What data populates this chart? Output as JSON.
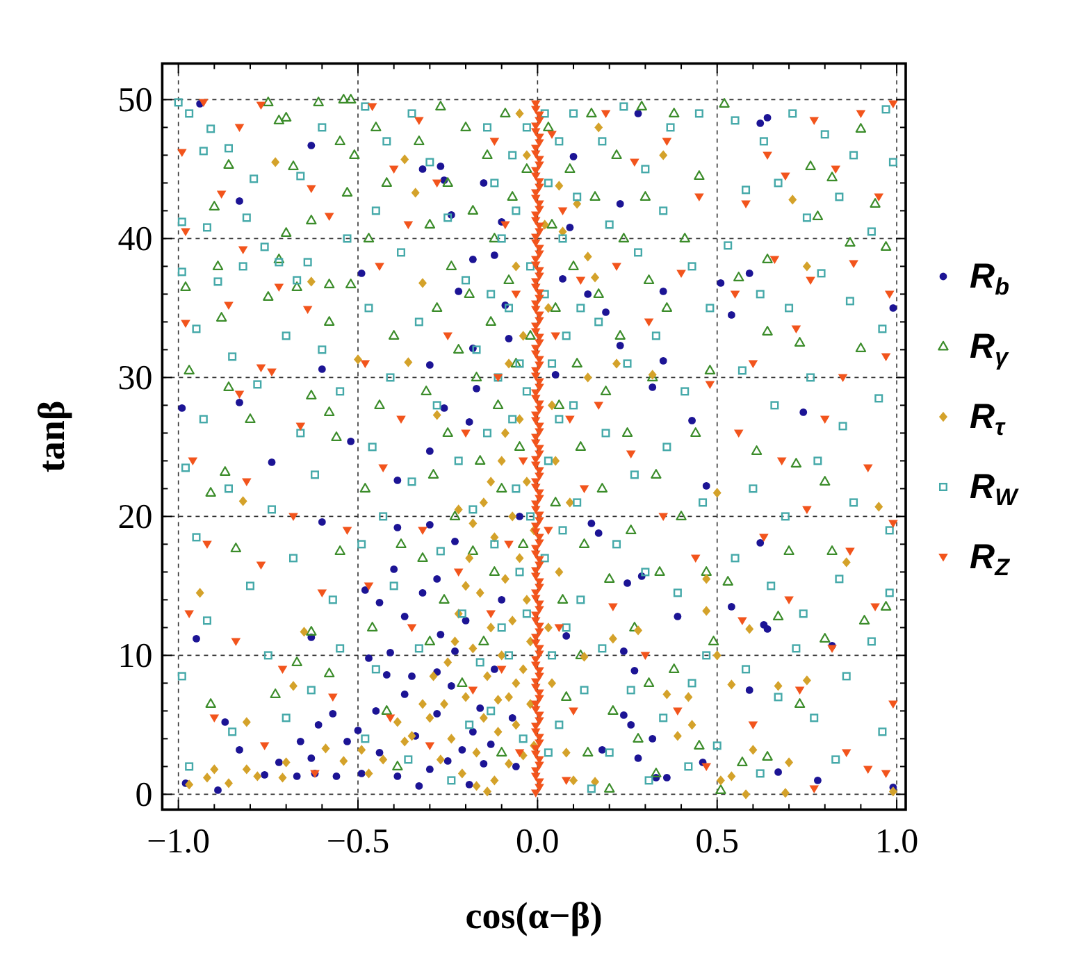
{
  "chart_data": {
    "type": "scatter",
    "xlabel": "cos(α−β)",
    "ylabel": "tanβ",
    "xlim": [
      -1.045,
      1.025
    ],
    "ylim": [
      -1.1,
      52.6
    ],
    "xticks": [
      {
        "value": -1,
        "label": "−1.0"
      },
      {
        "value": -0.9,
        "label": null
      },
      {
        "value": -0.8,
        "label": null
      },
      {
        "value": -0.7,
        "label": null
      },
      {
        "value": -0.6,
        "label": null
      },
      {
        "value": -0.5,
        "label": "−0.5"
      },
      {
        "value": -0.4,
        "label": null
      },
      {
        "value": -0.3,
        "label": null
      },
      {
        "value": -0.2,
        "label": null
      },
      {
        "value": -0.1,
        "label": null
      },
      {
        "value": 0,
        "label": "0.0"
      },
      {
        "value": 0.1,
        "label": null
      },
      {
        "value": 0.2,
        "label": null
      },
      {
        "value": 0.3,
        "label": null
      },
      {
        "value": 0.4,
        "label": null
      },
      {
        "value": 0.5,
        "label": "0.5"
      },
      {
        "value": 0.6,
        "label": null
      },
      {
        "value": 0.7,
        "label": null
      },
      {
        "value": 0.8,
        "label": null
      },
      {
        "value": 0.9,
        "label": null
      },
      {
        "value": 1,
        "label": "1.0"
      }
    ],
    "yticks": [
      0,
      {
        "value": 2,
        "label": null
      },
      {
        "value": 4,
        "label": null
      },
      {
        "value": 6,
        "label": null
      },
      {
        "value": 8,
        "label": null
      },
      10,
      {
        "value": 12,
        "label": null
      },
      {
        "value": 14,
        "label": null
      },
      {
        "value": 16,
        "label": null
      },
      {
        "value": 18,
        "label": null
      },
      20,
      {
        "value": 22,
        "label": null
      },
      {
        "value": 24,
        "label": null
      },
      {
        "value": 26,
        "label": null
      },
      {
        "value": 28,
        "label": null
      },
      30,
      {
        "value": 32,
        "label": null
      },
      {
        "value": 34,
        "label": null
      },
      {
        "value": 36,
        "label": null
      },
      {
        "value": 38,
        "label": null
      },
      40,
      {
        "value": 42,
        "label": null
      },
      {
        "value": 44,
        "label": null
      },
      {
        "value": 46,
        "label": null
      },
      {
        "value": 48,
        "label": null
      },
      50
    ],
    "grid": true,
    "legend": "right",
    "series": [
      {
        "name": "R$_{b}$",
        "color": "#1c1495",
        "marker": "circle",
        "x": [
          -0.94,
          -0.63,
          -0.83,
          -0.49,
          -0.6,
          -0.83,
          -0.99,
          -0.52,
          -0.32,
          -0.27,
          -0.26,
          -0.15,
          -0.24,
          -0.18,
          -0.1,
          -0.12,
          -0.09,
          -0.08,
          -0.18,
          -0.3,
          -0.17,
          -0.26,
          -0.19,
          -0.22,
          0.28,
          0.1,
          0.09,
          0.23,
          0.07,
          0.14,
          0.19,
          0.35,
          0.23,
          0.35,
          0.32,
          0.05,
          0.43,
          0.62,
          0.64,
          0.51,
          0.59,
          0.54,
          0.74,
          0.99,
          0.62,
          0.63,
          0.64,
          0.82,
          0.54,
          0.59,
          0.67,
          0.78,
          0.99,
          0.47,
          0.15,
          0.17,
          0.25,
          0.29,
          0.39,
          0.24,
          0.27,
          0.24,
          0.26,
          0.18,
          0.32,
          0.46,
          0.08,
          0.33,
          0.36,
          0.28,
          -0.74,
          -0.3,
          -0.39,
          -0.6,
          -0.39,
          -0.3,
          -0.4,
          -0.28,
          -0.23,
          -0.44,
          -0.48,
          -0.37,
          -0.32,
          -0.95,
          -0.63,
          -0.41,
          -0.87,
          -0.83,
          -0.72,
          -0.63,
          -0.57,
          -0.61,
          -0.53,
          -0.44,
          -0.37,
          -0.35,
          -0.28,
          -0.24,
          -0.18,
          -0.21,
          -0.3,
          -0.39,
          -0.49,
          -0.56,
          -0.62,
          -0.67,
          -0.76,
          -0.89,
          -0.98,
          -0.19,
          -0.15,
          -0.16,
          -0.28,
          -0.27,
          -0.23,
          -0.07,
          -0.12,
          -0.1,
          -0.05,
          -0.06,
          -0.45,
          -0.5,
          -0.2,
          -0.34,
          -0.42,
          -0.25,
          -0.13,
          -0.66,
          -0.33,
          -0.47
        ],
        "values": [
          49.7,
          46.7,
          42.7,
          37.5,
          30.6,
          28.2,
          27.8,
          25.4,
          45,
          45.2,
          44.2,
          44,
          41.7,
          38.5,
          41.2,
          38.8,
          35.2,
          32.8,
          32.1,
          30.9,
          29.2,
          27.8,
          26.8,
          36.2,
          49,
          45.9,
          40.8,
          42.5,
          37.1,
          36,
          34.7,
          36.2,
          32.3,
          31.2,
          29.3,
          30.2,
          26.9,
          48.3,
          48.7,
          36.8,
          37.5,
          34.5,
          27.5,
          35,
          18.1,
          12.2,
          11.9,
          10.7,
          13.5,
          7.5,
          1.6,
          1,
          0.5,
          22.2,
          19.5,
          18.8,
          15.2,
          15.7,
          12.8,
          10.3,
          8.9,
          5.7,
          5,
          3.2,
          4,
          2.3,
          11.4,
          1.2,
          1.2,
          2.6,
          23.9,
          24.7,
          22.6,
          19.6,
          19.2,
          19.4,
          16.2,
          15.5,
          18.2,
          13.8,
          14.7,
          12.8,
          14.5,
          11.2,
          11.3,
          10.2,
          5.2,
          3.2,
          2.3,
          2.6,
          5.8,
          5,
          3.8,
          3,
          7.2,
          8.5,
          5.8,
          7.8,
          4.5,
          3.2,
          1.8,
          1.3,
          1.5,
          1.3,
          1.5,
          1.3,
          1.4,
          0.3,
          0.8,
          0.7,
          2.2,
          6.2,
          8.8,
          11.5,
          10.3,
          5.5,
          9,
          14,
          20,
          2,
          6,
          4.6,
          12.5,
          4.2,
          8.6,
          2.4,
          3.6,
          3.8,
          0.6,
          9.8
        ]
      },
      {
        "name": "R$_{γ}$",
        "color": "#3b8c2a",
        "marker": "triangle",
        "x": [
          0.9,
          0.82,
          0.76,
          0.94,
          0.78,
          0.97,
          0.87,
          0.64,
          0.56,
          0.64,
          0.73,
          0.9,
          0.52,
          0.61,
          0.72,
          0.8,
          0.7,
          0.82,
          0.97,
          0.91,
          0.8,
          0.67,
          0.53,
          0.73,
          0.64,
          0.57,
          0.51,
          -0.54,
          -0.52,
          -0.75,
          -0.61,
          -0.7,
          -0.72,
          -0.55,
          -0.51,
          -0.68,
          -0.86,
          -0.9,
          -0.53,
          -0.63,
          -0.7,
          -0.98,
          -0.89,
          -0.75,
          -0.58,
          -0.72,
          -0.67,
          -0.58,
          -0.52,
          -0.88,
          -0.86,
          -0.63,
          -0.58,
          -0.8,
          -0.87,
          -0.91,
          -0.84,
          -0.73,
          -0.91,
          -0.63,
          -0.58,
          -0.56,
          -0.67,
          -0.55,
          -0.97,
          -0.45,
          -0.42,
          -0.47,
          -0.4,
          -0.44,
          -0.48,
          -0.38,
          -0.46,
          -0.42,
          -0.39,
          0.38,
          0.45,
          0.41,
          0.36,
          0.48,
          0.44,
          0.4,
          0.47,
          0.38,
          0.45,
          0.49,
          -0.33,
          -0.3,
          -0.28,
          -0.31,
          -0.29,
          -0.32,
          -0.3,
          -0.27,
          -0.25,
          -0.24,
          -0.22,
          -0.25,
          -0.23,
          -0.26,
          -0.21,
          -0.2,
          -0.18,
          -0.19,
          -0.17,
          -0.16,
          -0.18,
          -0.15,
          -0.14,
          -0.12,
          -0.13,
          -0.11,
          -0.1,
          -0.12,
          -0.09,
          -0.07,
          -0.08,
          -0.06,
          -0.05,
          -0.04,
          -0.03,
          -0.02,
          0.03,
          0.04,
          0.05,
          0.06,
          0.05,
          0.07,
          0.08,
          0.09,
          0.1,
          0.11,
          0.12,
          0.13,
          0.12,
          0.14,
          0.15,
          0.16,
          0.17,
          0.19,
          0.18,
          0.2,
          0.21,
          0.22,
          0.24,
          0.23,
          0.25,
          0.26,
          0.27,
          0.28,
          0.29,
          0.3,
          0.31,
          0.32,
          0.33,
          0.34,
          0.31,
          0.2,
          0.33,
          -0.1
        ],
        "values": [
          47.9,
          44.4,
          45.2,
          42.5,
          41.6,
          39.4,
          39.7,
          38.5,
          37.2,
          33.3,
          32.5,
          32.1,
          49.7,
          24.7,
          23.8,
          22.5,
          17.5,
          17.5,
          13.5,
          12.5,
          11.2,
          12.8,
          15.3,
          6.5,
          2.7,
          2.3,
          0.3,
          50,
          50,
          49.8,
          49.8,
          48.7,
          48.5,
          47,
          46,
          45.2,
          45.3,
          42.3,
          43.3,
          41.3,
          40.4,
          36.5,
          38,
          35.8,
          36.7,
          38.5,
          36.5,
          34,
          36.7,
          34.3,
          29.3,
          28.7,
          27.5,
          27,
          23.2,
          21.7,
          17.7,
          7.2,
          6.5,
          11.7,
          8.7,
          25.7,
          9.5,
          17.5,
          30.5,
          48,
          44,
          40,
          33,
          28,
          22,
          18,
          12,
          6,
          2,
          49,
          44.5,
          40,
          35,
          30.5,
          26,
          20,
          16,
          9,
          3.5,
          11,
          47,
          41,
          35,
          29,
          23,
          17,
          11,
          49.5,
          44,
          38,
          32,
          26,
          20,
          14,
          8,
          48,
          42,
          36,
          30,
          24,
          17.5,
          11,
          46,
          40,
          34,
          28,
          22,
          16,
          49,
          43,
          37,
          31,
          25,
          18,
          45,
          33,
          48,
          41,
          35,
          28,
          21,
          14,
          7,
          45,
          38,
          31,
          25,
          18,
          10,
          3,
          49,
          43,
          36,
          29,
          22,
          15.5,
          6,
          46,
          40,
          33,
          26,
          19,
          12,
          4,
          49.5,
          43,
          37,
          30,
          23,
          16,
          8,
          0.4,
          1.5,
          3
        ]
      },
      {
        "name": "R$_{τ}$",
        "color": "#d4a22a",
        "marker": "diamond",
        "x": [
          -0.73,
          -0.63,
          -0.37,
          -0.32,
          -0.36,
          -0.5,
          -0.28,
          -0.34,
          0.35,
          0.71,
          0.75,
          0.32,
          0.22,
          0.07,
          0.14,
          0.16,
          0.17,
          0.14,
          0.11,
          0.06,
          0.5,
          0.95,
          0.86,
          0.47,
          0.47,
          0.59,
          0.5,
          0.54,
          0.67,
          0.75,
          0.6,
          0.7,
          0.58,
          0.51,
          0.54,
          0.43,
          0.39,
          0.42,
          0.36,
          0.28,
          0.21,
          0.13,
          0.1,
          0.16,
          0.99,
          0.69,
          -0.82,
          -0.94,
          -0.65,
          -0.81,
          -0.68,
          -0.97,
          -0.92,
          -0.9,
          -0.86,
          -0.81,
          -0.78,
          -0.71,
          -0.7,
          -0.59,
          -0.54,
          -0.49,
          -0.47,
          -0.43,
          -0.37,
          -0.39,
          -0.35,
          -0.32,
          -0.3,
          -0.27,
          -0.25,
          -0.24,
          -0.22,
          -0.21,
          -0.2,
          -0.19,
          -0.18,
          -0.17,
          -0.16,
          -0.15,
          -0.15,
          -0.14,
          -0.13,
          -0.12,
          -0.12,
          -0.11,
          -0.1,
          -0.1,
          -0.09,
          -0.08,
          -0.08,
          -0.07,
          -0.07,
          -0.06,
          -0.05,
          -0.05,
          -0.04,
          -0.04,
          -0.03,
          -0.03,
          -0.02,
          -0.02,
          -0.01,
          -0.01,
          -0.26,
          -0.23,
          -0.2,
          -0.18,
          -0.13,
          -0.11,
          -0.09,
          -0.06,
          -0.17,
          -0.29,
          -0.22,
          -0.14,
          -0.04,
          -0.06,
          -0.03,
          0.03,
          0.04,
          -0.08,
          0.02,
          -0.05,
          0.05,
          0.06,
          0.04,
          0.08,
          0.03,
          0.09
        ],
        "values": [
          45.5,
          36.9,
          45.7,
          36.8,
          31.1,
          31.3,
          27.3,
          43.3,
          46,
          42.8,
          38,
          30.2,
          31,
          40.5,
          38.7,
          37.2,
          48,
          30,
          42.5,
          43.8,
          21.7,
          20.7,
          16.7,
          15.5,
          13.2,
          11.9,
          10,
          7.9,
          7.8,
          8.2,
          3.2,
          2.3,
          0,
          1,
          1.3,
          5,
          4.2,
          7,
          7.2,
          11.8,
          11.2,
          9.9,
          1,
          0.9,
          0.2,
          0.1,
          21.1,
          14.5,
          11.7,
          5.2,
          7.8,
          0.7,
          1.2,
          1.8,
          0.8,
          1.8,
          1.3,
          1.2,
          2.3,
          3.3,
          2.4,
          3.2,
          1.5,
          2.5,
          3.8,
          5.2,
          4.2,
          6.5,
          5.5,
          2.5,
          9.5,
          4,
          13,
          1.5,
          7,
          17,
          10.5,
          3,
          14.5,
          5.5,
          21,
          8.5,
          12,
          1,
          18.5,
          4.5,
          10,
          24,
          15.5,
          7,
          2.2,
          20,
          12.5,
          5,
          17,
          27,
          9,
          2.8,
          14,
          22.5,
          6.5,
          11,
          19,
          3.5,
          6.5,
          11,
          15,
          19.5,
          22.5,
          6.8,
          26,
          8,
          0.6,
          8.5,
          20.5,
          0.2,
          33,
          38,
          46,
          35,
          28,
          31,
          41,
          49,
          24,
          16,
          8,
          3,
          12,
          21
        ]
      },
      {
        "name": "R$_{W}$",
        "color": "#45a9a9",
        "marker": "square",
        "x": [
          -1,
          -0.97,
          -0.91,
          -0.93,
          -0.86,
          -0.79,
          -0.81,
          -0.99,
          -0.92,
          -0.76,
          -0.72,
          -0.64,
          -0.67,
          -0.82,
          -0.89,
          -0.99,
          -0.7,
          -0.85,
          -0.95,
          -0.6,
          -0.78,
          -0.93,
          -0.66,
          -0.55,
          -0.98,
          -0.86,
          -0.74,
          -0.62,
          -0.95,
          -0.8,
          -0.68,
          -0.57,
          -0.92,
          -0.75,
          -0.63,
          -0.99,
          -0.85,
          -0.7,
          -0.55,
          -0.97,
          -0.6,
          -0.66,
          -0.53,
          -0.48,
          -0.42,
          -0.35,
          -0.3,
          -0.45,
          -0.38,
          -0.25,
          -0.47,
          -0.33,
          -0.2,
          -0.41,
          -0.28,
          -0.17,
          -0.46,
          -0.35,
          -0.22,
          -0.49,
          -0.4,
          -0.27,
          -0.18,
          -0.45,
          -0.33,
          -0.21,
          -0.48,
          -0.36,
          -0.24,
          -0.16,
          -0.19,
          -0.43,
          -0.14,
          -0.12,
          -0.1,
          -0.13,
          -0.11,
          -0.14,
          -0.12,
          -0.1,
          -0.13,
          -0.07,
          -0.06,
          -0.08,
          -0.05,
          -0.07,
          -0.06,
          -0.05,
          -0.08,
          -0.04,
          -0.03,
          -0.02,
          -0.03,
          -0.02,
          -0.03,
          0.02,
          0.03,
          0.02,
          0.04,
          0.03,
          0.02,
          0.04,
          0.03,
          0.06,
          0.07,
          0.08,
          0.06,
          0.07,
          0.08,
          0.06,
          0.1,
          0.11,
          0.12,
          0.1,
          0.11,
          0.12,
          0.13,
          0.15,
          0.18,
          0.24,
          0.3,
          0.37,
          0.45,
          0.2,
          0.28,
          0.35,
          0.43,
          0.17,
          0.25,
          0.33,
          0.41,
          0.48,
          0.19,
          0.27,
          0.36,
          0.46,
          0.22,
          0.3,
          0.39,
          0.47,
          0.18,
          0.26,
          0.35,
          0.43,
          0.2,
          0.31,
          0.42,
          0.5,
          0.55,
          0.63,
          0.71,
          0.8,
          0.88,
          0.97,
          0.99,
          0.58,
          0.67,
          0.75,
          0.84,
          0.93,
          0.53,
          0.62,
          0.7,
          0.79,
          0.87,
          0.96,
          0.57,
          0.66,
          0.76,
          0.85,
          0.95,
          0.6,
          0.69,
          0.78,
          0.88,
          0.98,
          0.55,
          0.65,
          0.74,
          0.84,
          0.93,
          0.58,
          0.67,
          0.77,
          0.86,
          0.96,
          0.62,
          0.83,
          0.98,
          0.72
        ],
        "values": [
          49.8,
          49,
          47.9,
          46.3,
          46.5,
          44.3,
          41.5,
          41.2,
          40.8,
          39.4,
          38.3,
          38.3,
          37,
          38,
          36.9,
          37.6,
          33,
          31.5,
          33.5,
          32,
          29.5,
          27,
          26,
          29,
          23.5,
          22,
          20.5,
          23,
          18.5,
          15,
          17,
          14,
          12.5,
          10,
          7.5,
          8.5,
          4.5,
          5.5,
          10.5,
          2,
          48,
          44.5,
          40,
          49.5,
          47,
          49,
          45.5,
          42,
          39,
          41.5,
          35,
          34,
          37,
          30,
          28,
          32,
          25,
          22.5,
          24,
          18,
          15,
          17.5,
          20.5,
          9,
          10.5,
          13,
          4,
          2.5,
          1,
          9.5,
          5,
          20,
          48,
          44,
          40,
          36,
          30,
          26,
          18,
          12,
          6,
          46,
          42,
          35,
          31,
          27,
          22,
          16,
          10,
          4,
          48,
          38,
          29,
          20,
          13,
          49,
          44,
          36,
          31,
          24,
          17,
          10,
          3,
          47,
          40,
          33,
          27,
          19,
          12,
          5,
          49,
          43,
          35,
          28,
          21,
          14,
          7.5,
          0.4,
          47,
          49.5,
          45,
          48,
          49,
          41,
          39,
          42,
          38,
          34,
          31,
          33,
          29,
          35,
          26,
          23,
          25,
          21,
          18,
          16,
          14.5,
          10,
          10.5,
          7.5,
          5.5,
          8,
          3,
          1,
          2,
          3.5,
          48.5,
          47,
          49,
          47.5,
          46,
          49.3,
          45.5,
          43.5,
          44,
          41.5,
          43,
          40.5,
          39.5,
          36,
          35,
          37.5,
          35.5,
          33.5,
          30.5,
          28,
          30,
          26.5,
          28.5,
          22,
          20,
          24,
          21,
          19,
          17,
          15,
          13,
          15.5,
          11,
          9,
          7,
          5.5,
          8.5,
          4.5,
          1.5,
          2.5,
          14.5,
          10.5
        ]
      },
      {
        "name": "R$_{Z}$",
        "color": "#f2541c",
        "marker": "triangle",
        "x": [
          -0.005,
          0.005,
          -0.005,
          0.005,
          -0.005,
          0.005,
          -0.005,
          0.005,
          -0.005,
          0.005,
          -0.005,
          0.005,
          -0.005,
          0.005,
          -0.005,
          0.005,
          -0.005,
          0.005,
          -0.005,
          0.005,
          -0.005,
          0.005,
          -0.005,
          0.005,
          -0.005,
          0.005,
          -0.005,
          0.005,
          -0.005,
          0.005,
          -0.005,
          0.005,
          -0.005,
          0.005,
          -0.005,
          0.005,
          -0.005,
          0.005,
          -0.005,
          0.005,
          -0.005,
          0.005,
          -0.005,
          0.005,
          -0.005,
          0.005,
          -0.005,
          0.005,
          -0.005,
          0.005,
          -0.005,
          0.005,
          -0.005,
          0.005,
          -0.005,
          0.005,
          -0.005,
          0.005,
          -0.005,
          0.005,
          -0.005,
          0.005,
          -0.005,
          -0.93,
          -0.77,
          -0.83,
          -0.99,
          -0.88,
          -0.63,
          -0.58,
          -0.98,
          -0.82,
          -0.72,
          -0.86,
          -0.64,
          -0.98,
          -0.77,
          -0.83,
          -0.66,
          -0.96,
          -0.81,
          -0.68,
          -0.92,
          -0.77,
          -0.6,
          -0.97,
          -0.84,
          -0.71,
          -0.57,
          -0.9,
          -0.76,
          -0.62,
          -0.53,
          -0.46,
          -0.4,
          -0.33,
          -0.44,
          -0.36,
          -0.28,
          -0.48,
          -0.38,
          -0.25,
          -0.43,
          -0.32,
          -0.2,
          -0.47,
          -0.35,
          -0.22,
          -0.41,
          -0.3,
          -0.18,
          -0.12,
          -0.09,
          -0.06,
          -0.11,
          -0.04,
          -0.08,
          -0.1,
          -0.05,
          0.04,
          0.07,
          0.05,
          0.09,
          0.03,
          0.06,
          0.1,
          0.12,
          0.13,
          -0.13,
          0.08,
          0.19,
          0.27,
          0.36,
          0.45,
          0.22,
          0.31,
          0.4,
          0.48,
          0.17,
          0.26,
          0.35,
          0.44,
          0.21,
          0.3,
          0.39,
          0.47,
          0.99,
          0.9,
          0.77,
          0.64,
          0.58,
          0.69,
          0.83,
          0.95,
          0.55,
          0.66,
          0.76,
          0.88,
          0.98,
          0.6,
          0.72,
          0.85,
          0.97,
          0.56,
          0.68,
          0.8,
          0.92,
          0.63,
          0.75,
          0.87,
          0.99,
          0.57,
          0.7,
          0.82,
          0.94,
          0.6,
          0.73,
          0.86,
          0.97,
          0.99,
          0.77,
          0.92,
          -0.74,
          0.005,
          -0.005,
          0.005,
          -0.005,
          0.005,
          -0.005,
          0.005,
          -0.005,
          0.005,
          -0.005,
          0.005,
          -0.005,
          0.005,
          -0.005,
          0.005,
          -0.005,
          0.005,
          -0.005,
          0.005,
          -0.005,
          0.005,
          -0.005,
          0.005,
          -0.005,
          0.005,
          -0.005,
          0.005,
          -0.005,
          0.005,
          -0.005,
          0.005,
          -0.005,
          0.005,
          -0.005,
          0.005,
          -0.005,
          0.005,
          -0.005,
          0.005,
          -0.005,
          0.005,
          -0.005,
          0.005,
          -0.005,
          0.005,
          -0.005,
          0.005,
          -0.005,
          0.005,
          -0.005,
          0.005,
          -0.005,
          0.005,
          -0.005,
          0.005,
          -0.005,
          0.005,
          -0.005,
          0.005,
          -0.005,
          0.005,
          -0.005
        ],
        "values": [
          0.1,
          0.9,
          1.7,
          2.5,
          3.3,
          4.1,
          4.9,
          5.7,
          6.5,
          7.3,
          8.1,
          8.9,
          9.7,
          10.5,
          11.3,
          12.1,
          12.9,
          13.7,
          14.5,
          15.3,
          16.1,
          16.9,
          17.7,
          18.5,
          19.3,
          20.1,
          20.9,
          21.7,
          22.5,
          23.3,
          24.1,
          24.9,
          25.7,
          26.5,
          27.3,
          28.1,
          28.9,
          29.7,
          30.5,
          31.3,
          32.1,
          32.9,
          33.7,
          34.5,
          35.3,
          36.1,
          36.9,
          37.7,
          38.5,
          39.3,
          40.1,
          40.9,
          41.7,
          42.5,
          43.3,
          44.1,
          44.9,
          45.7,
          46.5,
          47.3,
          48.1,
          48.9,
          49.7,
          49.8,
          49.6,
          48,
          46.2,
          43.2,
          43.6,
          41.6,
          40.5,
          39.2,
          36.5,
          35.2,
          34.9,
          33.9,
          30.7,
          28.8,
          26.5,
          24,
          22.5,
          20,
          18,
          16.5,
          14.5,
          13,
          11,
          9,
          7,
          5.5,
          3.5,
          1.5,
          19,
          49.5,
          45,
          48.5,
          38,
          41,
          44,
          31,
          27,
          33,
          23.5,
          19,
          26,
          15,
          12,
          16,
          5.5,
          3.5,
          7.5,
          47,
          41,
          36,
          30,
          24,
          18,
          9,
          3,
          47.5,
          42,
          33,
          27,
          19,
          12,
          6,
          37,
          22,
          13,
          1,
          49,
          45.5,
          47,
          43,
          38,
          34,
          37.5,
          29.5,
          28,
          24.5,
          20,
          17,
          13.5,
          10,
          6,
          2,
          49.7,
          49,
          48.5,
          46,
          42.5,
          44.5,
          45,
          43,
          36,
          38.5,
          37,
          38.2,
          36,
          31,
          33.5,
          30,
          31.5,
          26,
          24,
          27,
          23.5,
          18.5,
          20.5,
          17.5,
          19.5,
          12.5,
          14,
          10.5,
          13.5,
          5,
          7.5,
          3,
          1.5,
          6.5,
          0.4,
          1.8,
          30.4,
          0.5,
          1.3,
          2.1,
          2.9,
          3.7,
          4.5,
          5.3,
          6.1,
          6.9,
          7.7,
          8.5,
          9.3,
          10.1,
          10.9,
          11.7,
          12.5,
          13.3,
          14.1,
          14.9,
          15.7,
          16.5,
          17.3,
          18.1,
          18.9,
          19.7,
          20.5,
          21.3,
          22.1,
          22.9,
          23.7,
          24.5,
          25.3,
          26.1,
          26.9,
          27.7,
          28.5,
          29.3,
          30.1,
          30.9,
          31.7,
          32.5,
          33.3,
          34.1,
          34.9,
          35.7,
          36.5,
          37.3,
          38.1,
          38.9,
          39.7,
          40.5,
          41.3,
          42.1,
          42.9,
          43.7,
          44.5,
          45.3,
          46.1,
          46.9,
          47.7,
          48.5,
          49.3
        ]
      }
    ]
  }
}
